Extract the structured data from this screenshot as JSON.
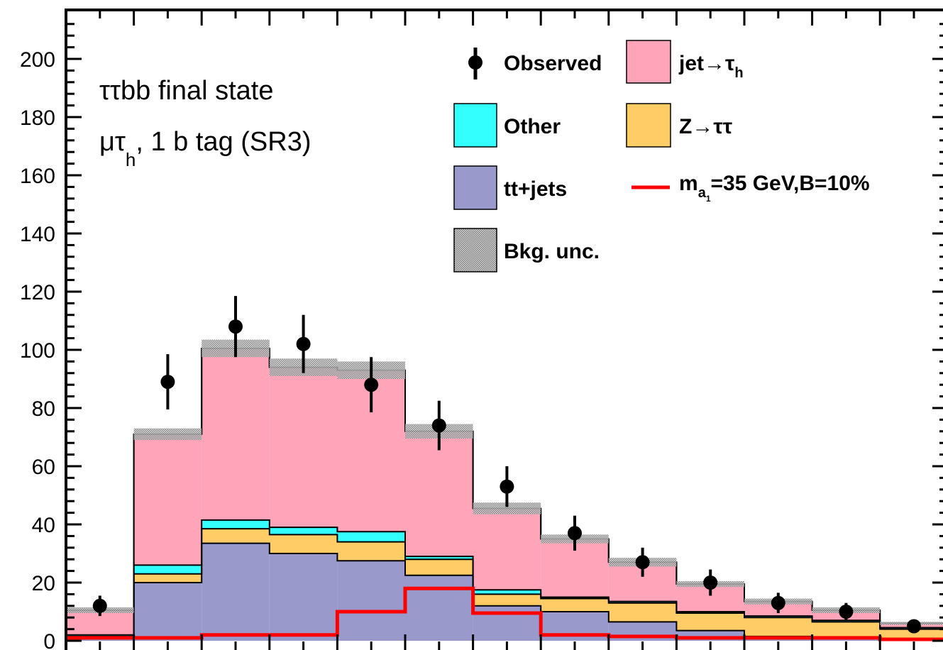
{
  "chart_data": {
    "type": "bar",
    "subtype": "stacked-histogram",
    "title": "",
    "xlabel": "",
    "ylabel": "",
    "ylim": [
      0,
      215
    ],
    "yticks": [
      0,
      20,
      40,
      60,
      80,
      100,
      120,
      140,
      160,
      180,
      200
    ],
    "tick_labels": [
      "0",
      "20",
      "40",
      "60",
      "80",
      "100",
      "120",
      "140",
      "160",
      "180",
      "200"
    ],
    "n_bins": 13,
    "grid": false,
    "legend_position": "top-right",
    "annotations": {
      "line1": "ττbb final state",
      "line2_main": "μτ",
      "line2_sub": "h",
      "line2_rest": ", 1 b tag (SR3)"
    },
    "legend": {
      "observed": "Observed",
      "jet_tau": "jet→τ",
      "jet_tau_sub": "h",
      "other": "Other",
      "ztautau": "Z→ττ",
      "ttjets": "tt+jets",
      "signal_prefix": "m",
      "signal_sub": "a",
      "signal_subsub": "1",
      "signal_suffix": "=35 GeV,B=10%",
      "bkg_unc": "Bkg. unc."
    },
    "colors": {
      "ttjets": "#9999cc",
      "ztautau": "#ffcc66",
      "other": "#33ffff",
      "jet_tau": "#ffa4b9",
      "signal": "#ff0000",
      "observed": "#000000",
      "unc": "#aaaaaa"
    },
    "series": [
      {
        "name": "tt+jets",
        "values": [
          1,
          20,
          33.5,
          30,
          27.5,
          22.5,
          12,
          10,
          6.5,
          3.5,
          1.5,
          1,
          0.5
        ]
      },
      {
        "name": "Z→ττ",
        "values": [
          0.5,
          3,
          5,
          6.5,
          6.5,
          5.5,
          4,
          4.5,
          6.5,
          6,
          6.5,
          5.5,
          3.5
        ]
      },
      {
        "name": "Other",
        "values": [
          0.5,
          3,
          3,
          2.5,
          3.5,
          1,
          1.5,
          0.5,
          0.5,
          0.5,
          0.5,
          0.5,
          0.5
        ]
      },
      {
        "name": "jet→τh",
        "values": [
          8.5,
          45,
          59,
          55,
          55.5,
          43,
          28,
          20,
          13.5,
          9.5,
          5,
          3.5,
          1.5
        ]
      }
    ],
    "total_background": [
      10.5,
      71,
      100.5,
      94,
      93,
      72,
      45.5,
      35,
      27,
      19.5,
      13.5,
      10.5,
      6
    ],
    "signal": [
      1,
      1,
      2,
      2,
      10,
      18,
      9.5,
      2,
      1.5,
      1,
      1,
      1,
      0.5
    ],
    "observed": [
      {
        "value": 12,
        "err_lo": 3.5,
        "err_hi": 3.5
      },
      {
        "value": 89,
        "err_lo": 9.5,
        "err_hi": 9.5
      },
      {
        "value": 108,
        "err_lo": 10.5,
        "err_hi": 10.5
      },
      {
        "value": 102,
        "err_lo": 10,
        "err_hi": 10
      },
      {
        "value": 88,
        "err_lo": 9.5,
        "err_hi": 9.5
      },
      {
        "value": 74,
        "err_lo": 8.5,
        "err_hi": 8.5
      },
      {
        "value": 53,
        "err_lo": 7,
        "err_hi": 7
      },
      {
        "value": 37,
        "err_lo": 6,
        "err_hi": 6
      },
      {
        "value": 27,
        "err_lo": 5,
        "err_hi": 5
      },
      {
        "value": 20,
        "err_lo": 4.5,
        "err_hi": 4.5
      },
      {
        "value": 13,
        "err_lo": 3.5,
        "err_hi": 3.5
      },
      {
        "value": 10,
        "err_lo": 3,
        "err_hi": 3
      },
      {
        "value": 5,
        "err_lo": 2,
        "err_hi": 2
      }
    ],
    "bkg_unc": [
      1,
      2,
      3,
      3,
      3,
      2.5,
      2,
      1.5,
      1.5,
      1,
      1,
      1,
      0.5
    ]
  }
}
